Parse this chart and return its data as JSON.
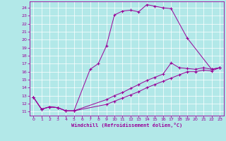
{
  "xlabel": "Windchill (Refroidissement éolien,°C)",
  "background_color": "#b2e8e8",
  "line_color": "#990099",
  "grid_color": "#c8f0f0",
  "xlim": [
    -0.5,
    23.5
  ],
  "ylim": [
    10.5,
    24.8
  ],
  "xticks": [
    0,
    1,
    2,
    3,
    4,
    5,
    6,
    7,
    8,
    9,
    10,
    11,
    12,
    13,
    14,
    15,
    16,
    17,
    18,
    19,
    20,
    21,
    22,
    23
  ],
  "yticks": [
    11,
    12,
    13,
    14,
    15,
    16,
    17,
    18,
    19,
    20,
    21,
    22,
    23,
    24
  ],
  "curve1_x": [
    0,
    1,
    2,
    3,
    4,
    5,
    7,
    8,
    9,
    10,
    11,
    12,
    13,
    14,
    15,
    16,
    17,
    19,
    22,
    23
  ],
  "curve1_y": [
    12.8,
    11.3,
    11.6,
    11.5,
    11.1,
    11.1,
    16.3,
    17.0,
    19.2,
    23.1,
    23.6,
    23.7,
    23.5,
    24.4,
    24.2,
    24.0,
    23.9,
    20.2,
    16.3,
    16.5
  ],
  "curve2_x": [
    0,
    1,
    2,
    3,
    4,
    5,
    9,
    10,
    11,
    12,
    13,
    14,
    15,
    16,
    17,
    18,
    19,
    20,
    21,
    22,
    23
  ],
  "curve2_y": [
    12.8,
    11.3,
    11.6,
    11.5,
    11.1,
    11.1,
    12.5,
    13.0,
    13.4,
    13.9,
    14.4,
    14.9,
    15.3,
    15.7,
    17.1,
    16.5,
    16.4,
    16.3,
    16.5,
    16.3,
    16.5
  ],
  "curve3_x": [
    0,
    1,
    2,
    3,
    4,
    5,
    9,
    10,
    11,
    12,
    13,
    14,
    15,
    16,
    17,
    18,
    19,
    20,
    21,
    22,
    23
  ],
  "curve3_y": [
    12.8,
    11.3,
    11.6,
    11.5,
    11.1,
    11.1,
    11.9,
    12.3,
    12.7,
    13.1,
    13.5,
    14.0,
    14.4,
    14.8,
    15.2,
    15.6,
    16.0,
    16.0,
    16.2,
    16.1,
    16.5
  ]
}
